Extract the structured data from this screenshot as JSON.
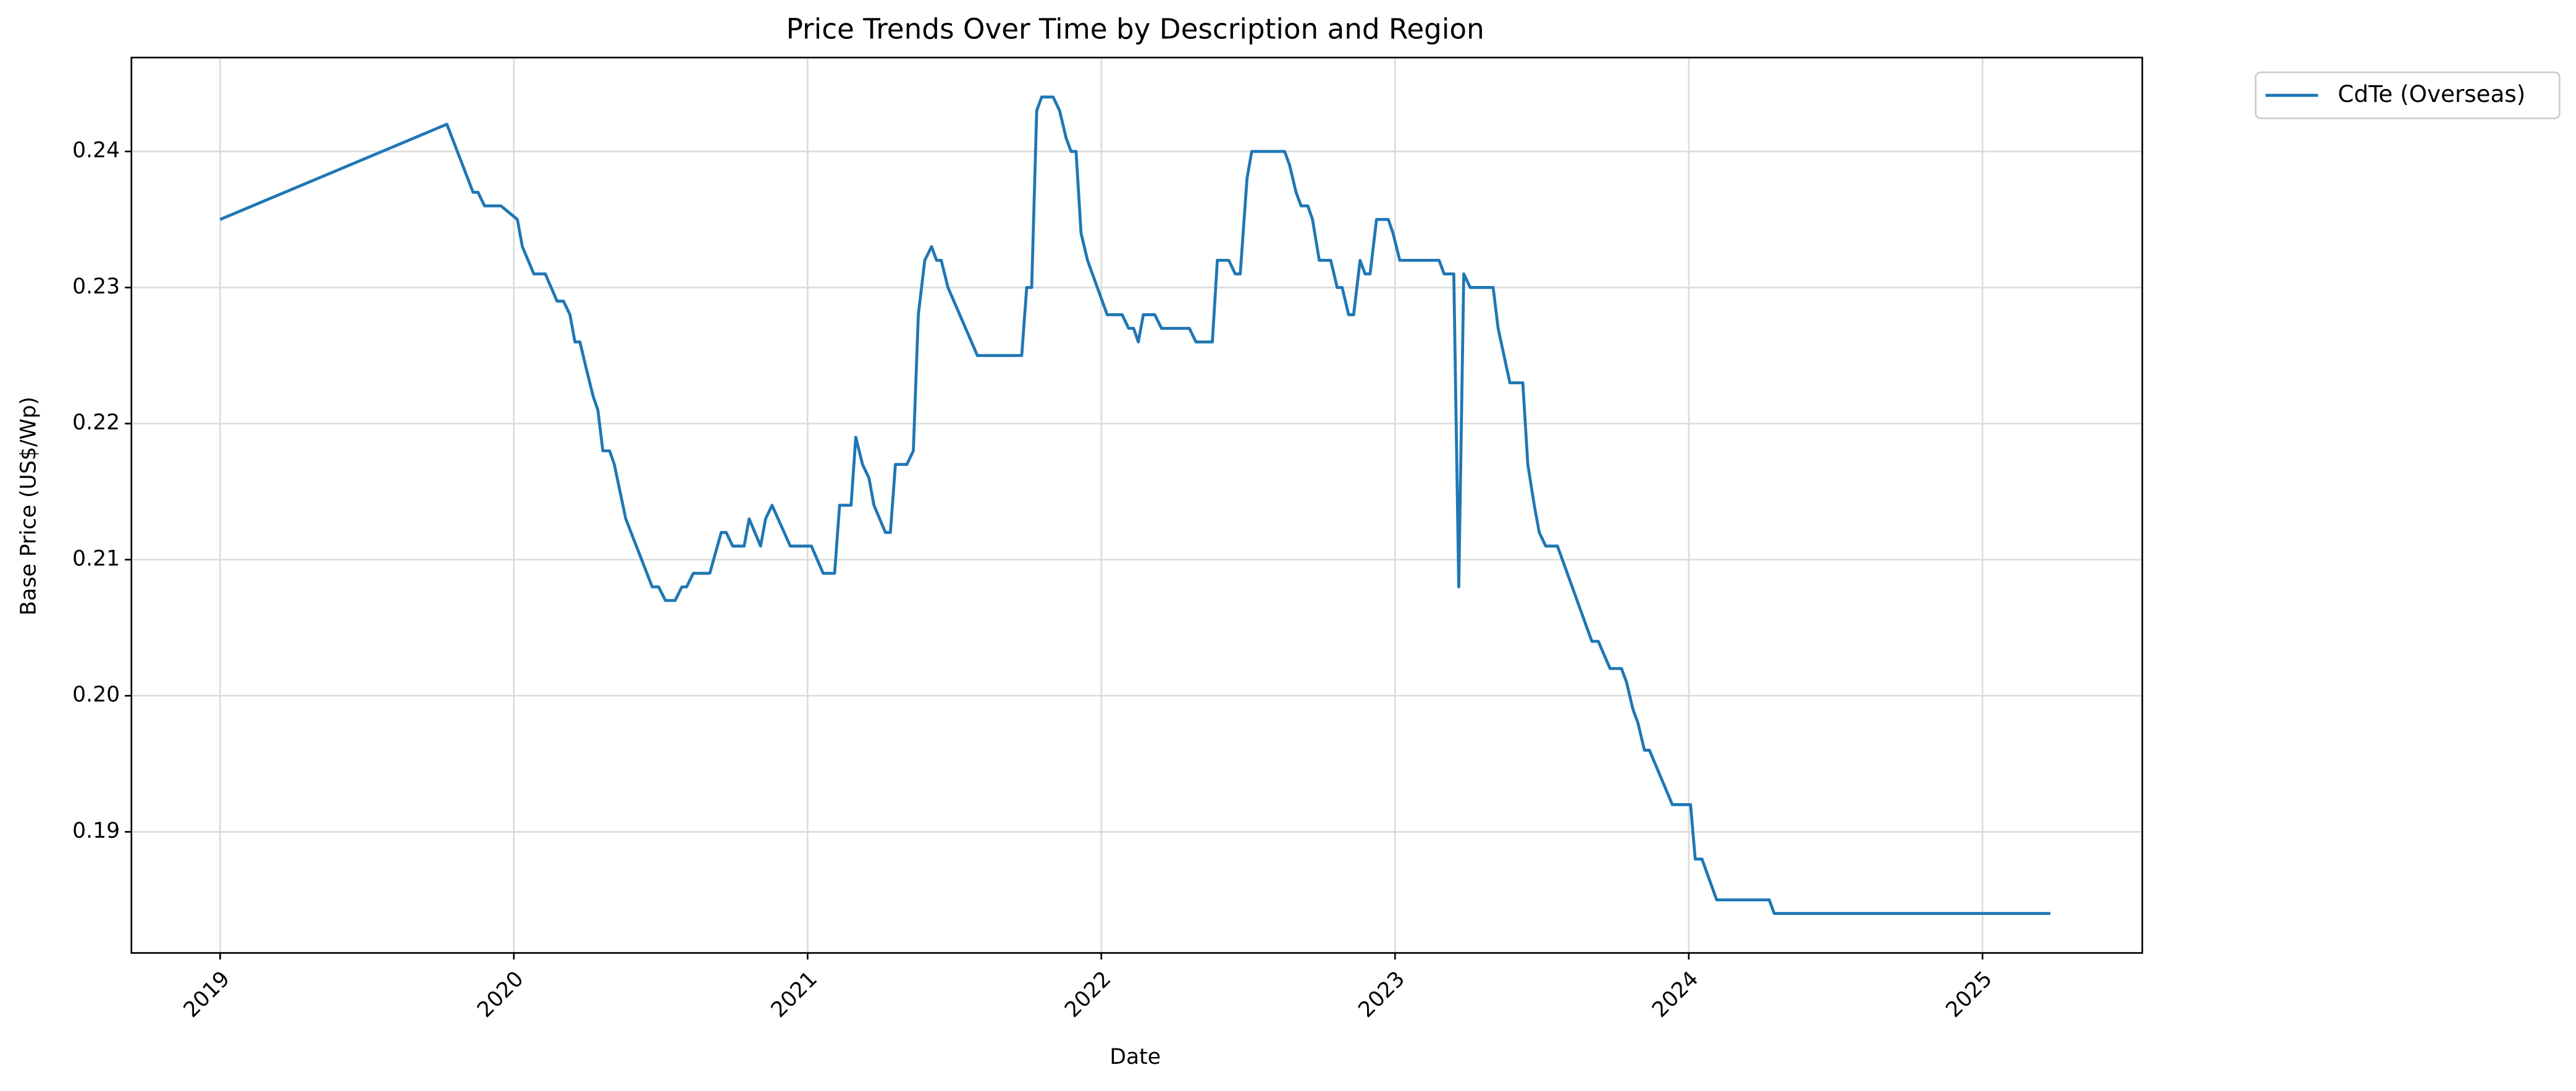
{
  "chart_data": {
    "type": "line",
    "title": "Price Trends Over Time by Description and Region",
    "x_label": "Date",
    "y_label": "Base Price (US$/Wp)",
    "x": [
      2019.0,
      2019.772,
      2019.861,
      2019.878,
      2019.9,
      2019.956,
      2020.012,
      2020.029,
      2020.068,
      2020.107,
      2020.147,
      2020.169,
      2020.191,
      2020.208,
      2020.225,
      2020.247,
      2020.27,
      2020.286,
      2020.303,
      2020.326,
      2020.342,
      2020.381,
      2020.471,
      2020.493,
      2020.516,
      2020.549,
      2020.572,
      2020.588,
      2020.611,
      2020.667,
      2020.706,
      2020.723,
      2020.745,
      2020.784,
      2020.801,
      2020.84,
      2020.857,
      2020.879,
      2020.941,
      2021.013,
      2021.053,
      2021.092,
      2021.109,
      2021.148,
      2021.164,
      2021.187,
      2021.209,
      2021.226,
      2021.265,
      2021.282,
      2021.299,
      2021.338,
      2021.36,
      2021.377,
      2021.399,
      2021.422,
      2021.439,
      2021.455,
      2021.478,
      2021.578,
      2021.729,
      2021.746,
      2021.763,
      2021.78,
      2021.797,
      2021.836,
      2021.858,
      2021.88,
      2021.897,
      2021.914,
      2021.931,
      2021.953,
      2022.02,
      2022.071,
      2022.093,
      2022.11,
      2022.126,
      2022.143,
      2022.182,
      2022.205,
      2022.3,
      2022.322,
      2022.378,
      2022.395,
      2022.434,
      2022.456,
      2022.473,
      2022.496,
      2022.512,
      2022.624,
      2022.641,
      2022.663,
      2022.68,
      2022.703,
      2022.719,
      2022.742,
      2022.781,
      2022.803,
      2022.82,
      2022.842,
      2022.859,
      2022.881,
      2022.898,
      2022.915,
      2022.937,
      2022.977,
      2022.993,
      2023.016,
      2023.15,
      2023.167,
      2023.2,
      2023.217,
      2023.234,
      2023.256,
      2023.334,
      2023.351,
      2023.391,
      2023.435,
      2023.452,
      2023.474,
      2023.491,
      2023.513,
      2023.553,
      2023.67,
      2023.692,
      2023.732,
      2023.771,
      2023.788,
      2023.81,
      2023.827,
      2023.849,
      2023.866,
      2023.944,
      2024.006,
      2024.022,
      2024.045,
      2024.095,
      2024.274,
      2024.291,
      2025.231
    ],
    "series": [
      {
        "name": "CdTe (Overseas)",
        "color": "#1f77b4",
        "values": [
          0.235,
          0.242,
          0.237,
          0.237,
          0.236,
          0.236,
          0.235,
          0.233,
          0.231,
          0.231,
          0.229,
          0.229,
          0.228,
          0.226,
          0.226,
          0.224,
          0.222,
          0.221,
          0.218,
          0.218,
          0.217,
          0.213,
          0.208,
          0.208,
          0.207,
          0.207,
          0.208,
          0.208,
          0.209,
          0.209,
          0.212,
          0.212,
          0.211,
          0.211,
          0.213,
          0.211,
          0.213,
          0.214,
          0.211,
          0.211,
          0.209,
          0.209,
          0.214,
          0.214,
          0.219,
          0.217,
          0.216,
          0.214,
          0.212,
          0.212,
          0.217,
          0.217,
          0.218,
          0.228,
          0.232,
          0.233,
          0.232,
          0.232,
          0.23,
          0.225,
          0.225,
          0.23,
          0.23,
          0.243,
          0.244,
          0.244,
          0.243,
          0.241,
          0.24,
          0.24,
          0.234,
          0.232,
          0.228,
          0.228,
          0.227,
          0.227,
          0.226,
          0.228,
          0.228,
          0.227,
          0.227,
          0.226,
          0.226,
          0.232,
          0.232,
          0.231,
          0.231,
          0.238,
          0.24,
          0.24,
          0.239,
          0.237,
          0.236,
          0.236,
          0.235,
          0.232,
          0.232,
          0.23,
          0.23,
          0.228,
          0.228,
          0.232,
          0.231,
          0.231,
          0.235,
          0.235,
          0.234,
          0.232,
          0.232,
          0.231,
          0.231,
          0.208,
          0.231,
          0.23,
          0.23,
          0.227,
          0.223,
          0.223,
          0.217,
          0.214,
          0.212,
          0.211,
          0.211,
          0.204,
          0.204,
          0.202,
          0.202,
          0.201,
          0.199,
          0.198,
          0.196,
          0.196,
          0.192,
          0.192,
          0.188,
          0.188,
          0.185,
          0.185,
          0.184,
          0.184
        ]
      }
    ],
    "xlim": [
      2018.698,
      2025.544
    ],
    "xticks": [
      2019,
      2020,
      2021,
      2022,
      2023,
      2024,
      2025
    ],
    "ylim": [
      0.1811,
      0.2469
    ],
    "yticks": [
      0.19,
      {
        "value": 0.2,
        "label": "0.20"
      },
      0.21,
      0.22,
      0.23,
      0.24
    ],
    "grid": true,
    "legend": "outside upper right"
  }
}
